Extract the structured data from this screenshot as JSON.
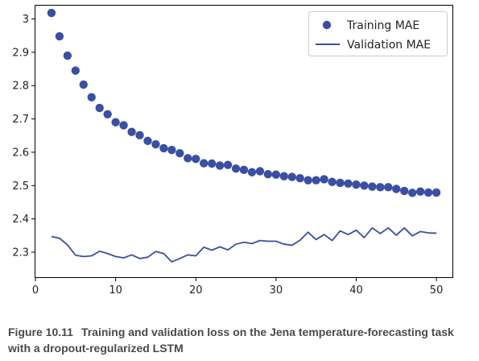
{
  "chart_data": {
    "type": "line",
    "title": "",
    "xlabel": "",
    "ylabel": "",
    "xlim": [
      0,
      52
    ],
    "ylim": [
      2.225,
      3.04
    ],
    "xticks": [
      0,
      10,
      20,
      30,
      40,
      50
    ],
    "yticks": [
      2.3,
      2.4,
      2.5,
      2.6,
      2.7,
      2.8,
      2.9,
      3.0
    ],
    "grid": false,
    "legend_position": "top-right",
    "x": [
      2,
      3,
      4,
      5,
      6,
      7,
      8,
      9,
      10,
      11,
      12,
      13,
      14,
      15,
      16,
      17,
      18,
      19,
      20,
      21,
      22,
      23,
      24,
      25,
      26,
      27,
      28,
      29,
      30,
      31,
      32,
      33,
      34,
      35,
      36,
      37,
      38,
      39,
      40,
      41,
      42,
      43,
      44,
      45,
      46,
      47,
      48,
      49,
      50
    ],
    "series": [
      {
        "name": "Training MAE",
        "style": "points",
        "color": "#3a4fa3",
        "values": [
          3.018,
          2.948,
          2.89,
          2.845,
          2.803,
          2.765,
          2.733,
          2.714,
          2.69,
          2.681,
          2.661,
          2.651,
          2.634,
          2.624,
          2.612,
          2.607,
          2.597,
          2.582,
          2.58,
          2.567,
          2.566,
          2.56,
          2.562,
          2.551,
          2.547,
          2.54,
          2.543,
          2.534,
          2.533,
          2.528,
          2.526,
          2.522,
          2.516,
          2.516,
          2.519,
          2.511,
          2.508,
          2.506,
          2.503,
          2.5,
          2.497,
          2.495,
          2.495,
          2.49,
          2.484,
          2.478,
          2.482,
          2.479,
          2.479
        ]
      },
      {
        "name": "Validation MAE",
        "style": "line",
        "color": "#3a4fa3",
        "values": [
          2.347,
          2.342,
          2.322,
          2.291,
          2.287,
          2.289,
          2.303,
          2.296,
          2.287,
          2.283,
          2.292,
          2.281,
          2.285,
          2.302,
          2.296,
          2.271,
          2.281,
          2.292,
          2.289,
          2.315,
          2.306,
          2.316,
          2.307,
          2.324,
          2.33,
          2.326,
          2.335,
          2.333,
          2.333,
          2.324,
          2.321,
          2.336,
          2.36,
          2.338,
          2.353,
          2.335,
          2.364,
          2.353,
          2.366,
          2.344,
          2.373,
          2.356,
          2.373,
          2.351,
          2.373,
          2.349,
          2.362,
          2.358,
          2.357
        ]
      }
    ]
  },
  "caption": {
    "figure_number": "Figure 10.11",
    "text": "Training and validation loss on the Jena temperature-forecasting task with a dropout-regularized LSTM"
  }
}
